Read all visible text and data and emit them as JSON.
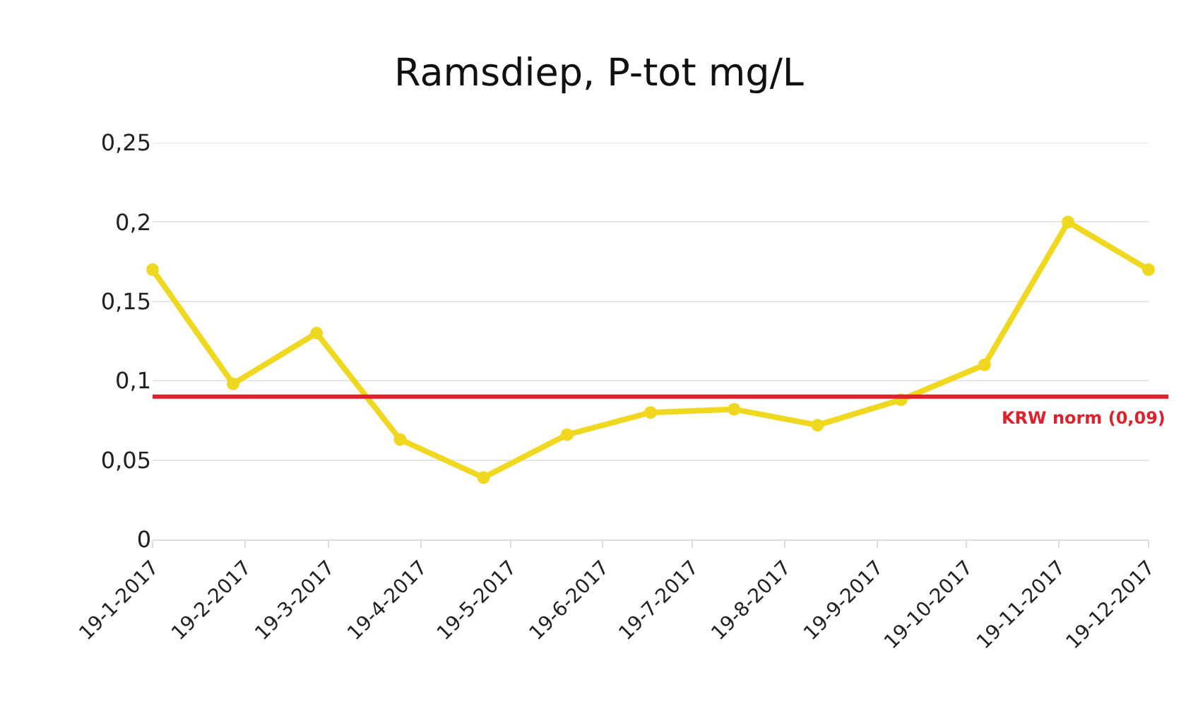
{
  "chart_data": {
    "type": "line",
    "title": "Ramsdiep, P-tot mg/L",
    "x": [
      "2017-01-19",
      "2017-02-15",
      "2017-03-15",
      "2017-04-12",
      "2017-05-10",
      "2017-06-07",
      "2017-07-05",
      "2017-08-02",
      "2017-08-30",
      "2017-09-27",
      "2017-10-25",
      "2017-11-22",
      "2017-12-19"
    ],
    "series": [
      {
        "color": "#f0d820",
        "values": [
          0.17,
          0.098,
          0.13,
          0.063,
          0.039,
          0.066,
          0.08,
          0.082,
          0.072,
          0.088,
          0.11,
          0.2,
          0.17
        ]
      }
    ],
    "xlim": [
      "2017-01-19",
      "2017-12-19"
    ],
    "xticks": [
      {
        "value": "2017-01-19",
        "label": "19-1-2017"
      },
      {
        "value": "2017-02-19",
        "label": "19-2-2017"
      },
      {
        "value": "2017-03-19",
        "label": "19-3-2017"
      },
      {
        "value": "2017-04-19",
        "label": "19-4-2017"
      },
      {
        "value": "2017-05-19",
        "label": "19-5-2017"
      },
      {
        "value": "2017-06-19",
        "label": "19-6-2017"
      },
      {
        "value": "2017-07-19",
        "label": "19-7-2017"
      },
      {
        "value": "2017-08-19",
        "label": "19-8-2017"
      },
      {
        "value": "2017-09-19",
        "label": "19-9-2017"
      },
      {
        "value": "2017-10-19",
        "label": "19-10-2017"
      },
      {
        "value": "2017-11-19",
        "label": "19-11-2017"
      },
      {
        "value": "2017-12-19",
        "label": "19-12-2017"
      }
    ],
    "ylim": [
      0,
      0.25
    ],
    "yticks": [
      {
        "value": 0,
        "label": "0"
      },
      {
        "value": 0.05,
        "label": "0,05"
      },
      {
        "value": 0.1,
        "label": "0,1"
      },
      {
        "value": 0.15,
        "label": "0,15"
      },
      {
        "value": 0.2,
        "label": "0,2"
      },
      {
        "value": 0.25,
        "label": "0,25"
      }
    ],
    "ref_lines": [
      {
        "axis": "y",
        "value": 0.09,
        "label": "KRW norm (0,09)",
        "color": "#e0202a"
      }
    ],
    "grid": "y",
    "marker": "circle",
    "line_style": "solid"
  }
}
